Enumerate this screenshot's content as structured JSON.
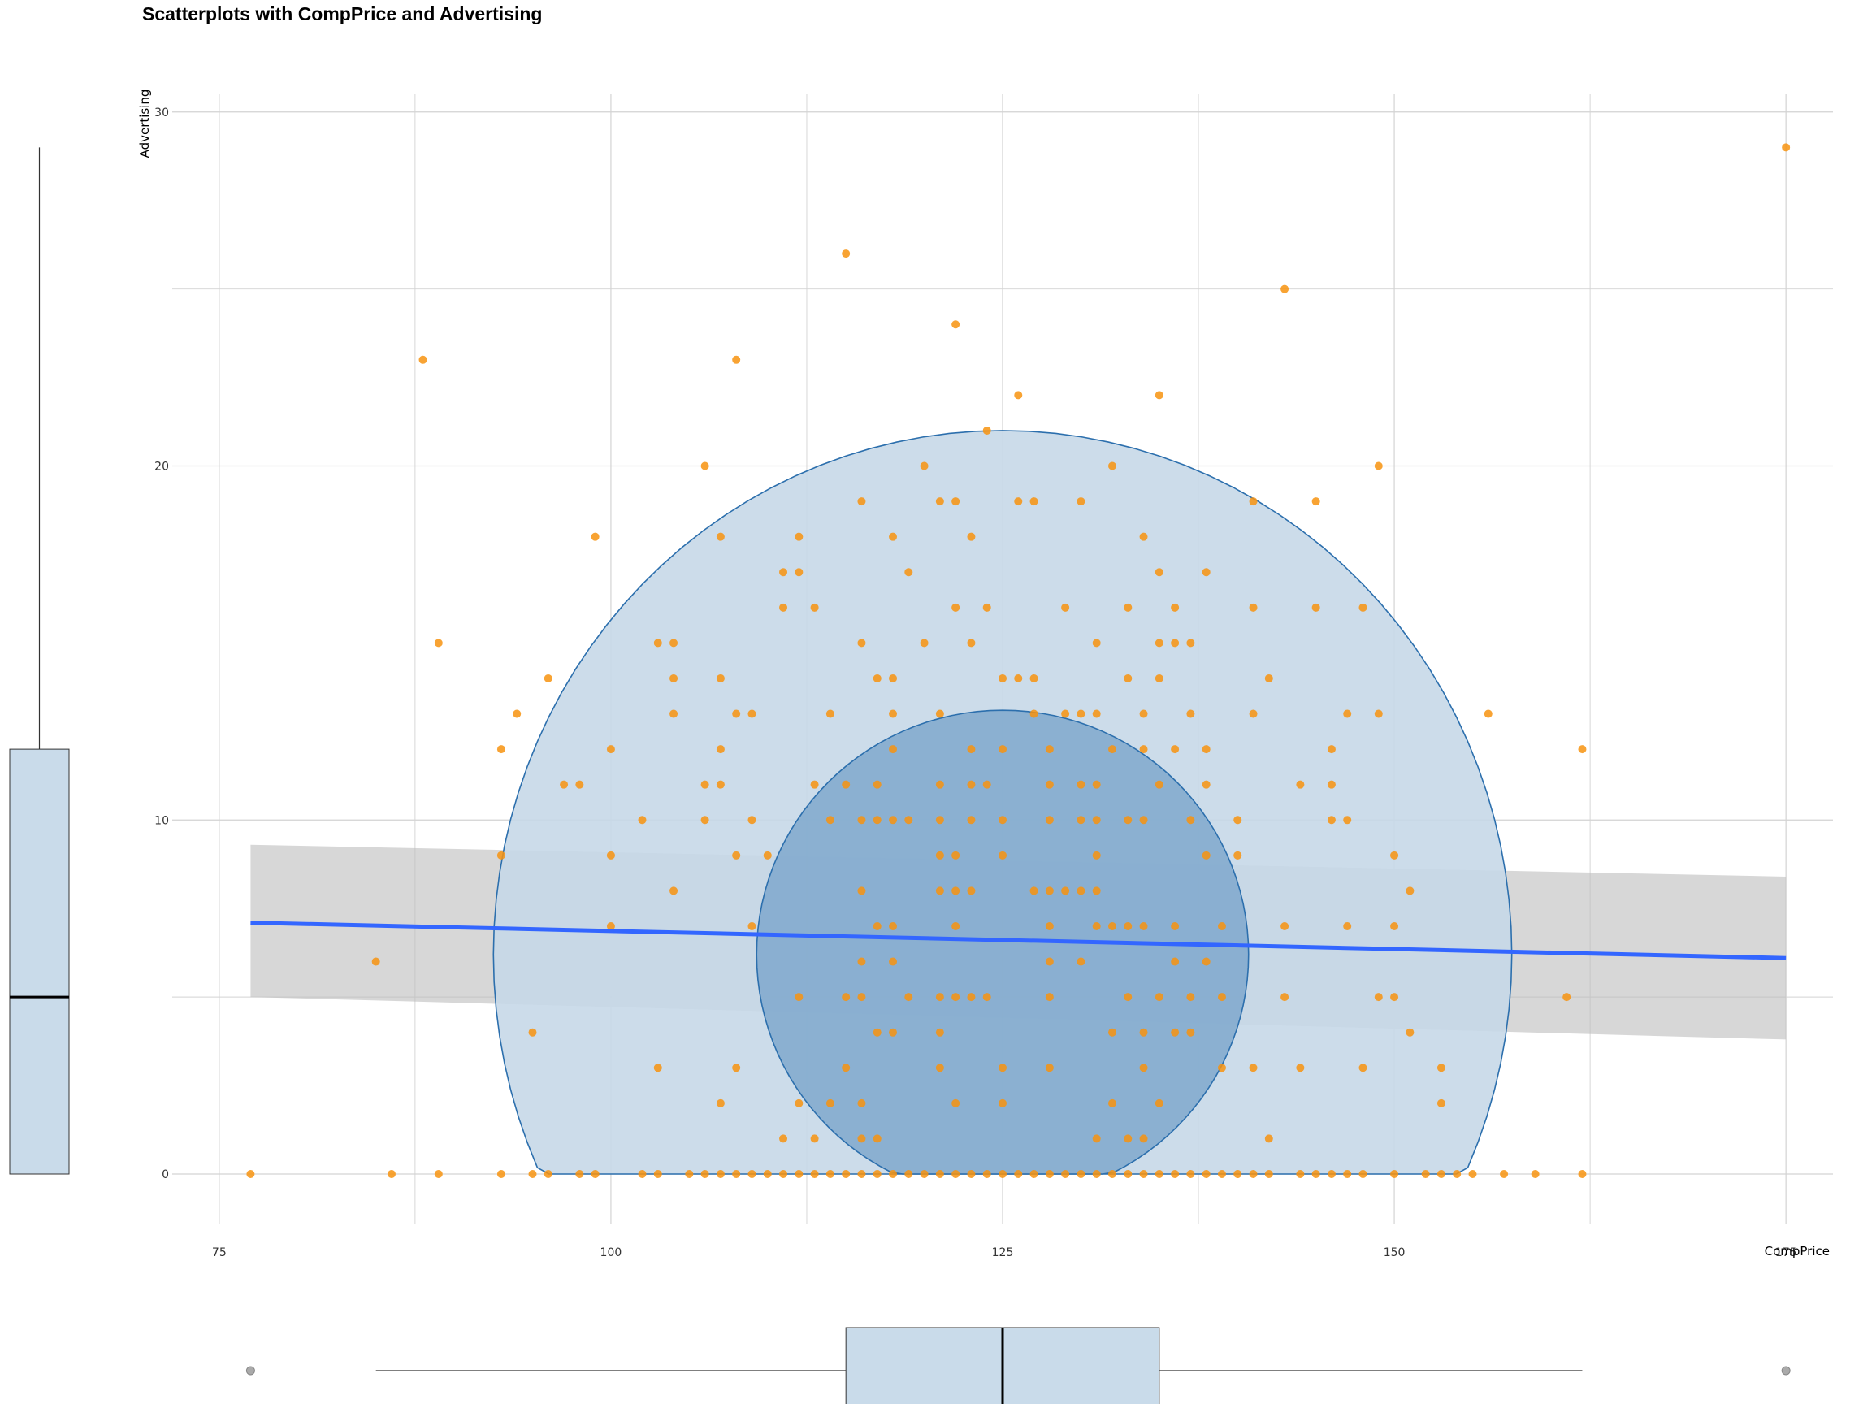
{
  "chart_data": {
    "type": "scatter",
    "title": "Scatterplots with CompPrice and Advertising",
    "xlabel": "CompPrice",
    "ylabel": "Advertising",
    "xlim": [
      72,
      178
    ],
    "ylim": [
      -1.4,
      30.5
    ],
    "x_ticks": [
      75,
      100,
      125,
      150,
      175
    ],
    "y_ticks": [
      0,
      10,
      20,
      30
    ],
    "grid": true,
    "legend": "none",
    "colors": {
      "points": "#f7930f",
      "trend_line": "#3366ff",
      "confidence_band": "#bdbdbd",
      "outer_ellipse": "#c6d8e8",
      "inner_ellipse": "#7fa8cd",
      "ellipse_stroke": "#2c6fad",
      "boxplot_fill": "#c9dbea",
      "grid": "#d3d3d3"
    },
    "trend": {
      "x": [
        77,
        175
      ],
      "y": [
        7.1,
        6.1
      ],
      "band_lower": [
        5.0,
        3.8
      ],
      "band_upper": [
        9.3,
        8.4
      ]
    },
    "ellipses": [
      {
        "name": "outer",
        "center": [
          125,
          6.2
        ],
        "semi_x": 32.5,
        "top": 21.0,
        "floor": 0
      },
      {
        "name": "inner",
        "center": [
          125,
          6.2
        ],
        "semi_x": 15.7,
        "top": 13.1,
        "floor": 0
      }
    ],
    "points": [
      [
        175,
        29
      ],
      [
        115,
        26
      ],
      [
        143,
        25
      ],
      [
        122,
        24
      ],
      [
        88,
        23
      ],
      [
        108,
        23
      ],
      [
        126,
        22
      ],
      [
        135,
        22
      ],
      [
        124,
        21
      ],
      [
        106,
        20
      ],
      [
        120,
        20
      ],
      [
        132,
        20
      ],
      [
        149,
        20
      ],
      [
        116,
        19
      ],
      [
        121,
        19
      ],
      [
        122,
        19
      ],
      [
        126,
        19
      ],
      [
        127,
        19
      ],
      [
        130,
        19
      ],
      [
        141,
        19
      ],
      [
        145,
        19
      ],
      [
        99,
        18
      ],
      [
        107,
        18
      ],
      [
        112,
        18
      ],
      [
        118,
        18
      ],
      [
        123,
        18
      ],
      [
        134,
        18
      ],
      [
        111,
        17
      ],
      [
        112,
        17
      ],
      [
        119,
        17
      ],
      [
        135,
        17
      ],
      [
        138,
        17
      ],
      [
        111,
        16
      ],
      [
        113,
        16
      ],
      [
        122,
        16
      ],
      [
        124,
        16
      ],
      [
        129,
        16
      ],
      [
        133,
        16
      ],
      [
        136,
        16
      ],
      [
        141,
        16
      ],
      [
        145,
        16
      ],
      [
        148,
        16
      ],
      [
        89,
        15
      ],
      [
        103,
        15
      ],
      [
        104,
        15
      ],
      [
        116,
        15
      ],
      [
        120,
        15
      ],
      [
        123,
        15
      ],
      [
        131,
        15
      ],
      [
        135,
        15
      ],
      [
        136,
        15
      ],
      [
        137,
        15
      ],
      [
        96,
        14
      ],
      [
        104,
        14
      ],
      [
        107,
        14
      ],
      [
        117,
        14
      ],
      [
        118,
        14
      ],
      [
        125,
        14
      ],
      [
        126,
        14
      ],
      [
        127,
        14
      ],
      [
        133,
        14
      ],
      [
        135,
        14
      ],
      [
        142,
        14
      ],
      [
        94,
        13
      ],
      [
        104,
        13
      ],
      [
        108,
        13
      ],
      [
        109,
        13
      ],
      [
        114,
        13
      ],
      [
        118,
        13
      ],
      [
        121,
        13
      ],
      [
        127,
        13
      ],
      [
        129,
        13
      ],
      [
        130,
        13
      ],
      [
        131,
        13
      ],
      [
        134,
        13
      ],
      [
        137,
        13
      ],
      [
        141,
        13
      ],
      [
        147,
        13
      ],
      [
        149,
        13
      ],
      [
        156,
        13
      ],
      [
        93,
        12
      ],
      [
        100,
        12
      ],
      [
        107,
        12
      ],
      [
        118,
        12
      ],
      [
        123,
        12
      ],
      [
        125,
        12
      ],
      [
        128,
        12
      ],
      [
        132,
        12
      ],
      [
        134,
        12
      ],
      [
        136,
        12
      ],
      [
        138,
        12
      ],
      [
        146,
        12
      ],
      [
        162,
        12
      ],
      [
        97,
        11
      ],
      [
        98,
        11
      ],
      [
        106,
        11
      ],
      [
        107,
        11
      ],
      [
        113,
        11
      ],
      [
        115,
        11
      ],
      [
        117,
        11
      ],
      [
        121,
        11
      ],
      [
        123,
        11
      ],
      [
        124,
        11
      ],
      [
        128,
        11
      ],
      [
        130,
        11
      ],
      [
        131,
        11
      ],
      [
        135,
        11
      ],
      [
        138,
        11
      ],
      [
        144,
        11
      ],
      [
        146,
        11
      ],
      [
        102,
        10
      ],
      [
        106,
        10
      ],
      [
        109,
        10
      ],
      [
        114,
        10
      ],
      [
        116,
        10
      ],
      [
        117,
        10
      ],
      [
        118,
        10
      ],
      [
        119,
        10
      ],
      [
        121,
        10
      ],
      [
        123,
        10
      ],
      [
        125,
        10
      ],
      [
        128,
        10
      ],
      [
        130,
        10
      ],
      [
        131,
        10
      ],
      [
        133,
        10
      ],
      [
        134,
        10
      ],
      [
        137,
        10
      ],
      [
        140,
        10
      ],
      [
        146,
        10
      ],
      [
        147,
        10
      ],
      [
        93,
        9
      ],
      [
        100,
        9
      ],
      [
        108,
        9
      ],
      [
        110,
        9
      ],
      [
        121,
        9
      ],
      [
        122,
        9
      ],
      [
        125,
        9
      ],
      [
        131,
        9
      ],
      [
        138,
        9
      ],
      [
        140,
        9
      ],
      [
        150,
        9
      ],
      [
        104,
        8
      ],
      [
        116,
        8
      ],
      [
        121,
        8
      ],
      [
        122,
        8
      ],
      [
        123,
        8
      ],
      [
        127,
        8
      ],
      [
        128,
        8
      ],
      [
        129,
        8
      ],
      [
        130,
        8
      ],
      [
        131,
        8
      ],
      [
        151,
        8
      ],
      [
        100,
        7
      ],
      [
        109,
        7
      ],
      [
        117,
        7
      ],
      [
        118,
        7
      ],
      [
        122,
        7
      ],
      [
        128,
        7
      ],
      [
        131,
        7
      ],
      [
        132,
        7
      ],
      [
        133,
        7
      ],
      [
        134,
        7
      ],
      [
        136,
        7
      ],
      [
        139,
        7
      ],
      [
        143,
        7
      ],
      [
        147,
        7
      ],
      [
        150,
        7
      ],
      [
        85,
        6
      ],
      [
        116,
        6
      ],
      [
        118,
        6
      ],
      [
        128,
        6
      ],
      [
        130,
        6
      ],
      [
        136,
        6
      ],
      [
        138,
        6
      ],
      [
        112,
        5
      ],
      [
        115,
        5
      ],
      [
        116,
        5
      ],
      [
        119,
        5
      ],
      [
        121,
        5
      ],
      [
        122,
        5
      ],
      [
        123,
        5
      ],
      [
        124,
        5
      ],
      [
        128,
        5
      ],
      [
        133,
        5
      ],
      [
        135,
        5
      ],
      [
        137,
        5
      ],
      [
        139,
        5
      ],
      [
        143,
        5
      ],
      [
        149,
        5
      ],
      [
        150,
        5
      ],
      [
        161,
        5
      ],
      [
        95,
        4
      ],
      [
        117,
        4
      ],
      [
        118,
        4
      ],
      [
        121,
        4
      ],
      [
        132,
        4
      ],
      [
        134,
        4
      ],
      [
        136,
        4
      ],
      [
        137,
        4
      ],
      [
        151,
        4
      ],
      [
        103,
        3
      ],
      [
        108,
        3
      ],
      [
        115,
        3
      ],
      [
        121,
        3
      ],
      [
        125,
        3
      ],
      [
        128,
        3
      ],
      [
        134,
        3
      ],
      [
        139,
        3
      ],
      [
        141,
        3
      ],
      [
        144,
        3
      ],
      [
        148,
        3
      ],
      [
        153,
        3
      ],
      [
        107,
        2
      ],
      [
        112,
        2
      ],
      [
        114,
        2
      ],
      [
        116,
        2
      ],
      [
        122,
        2
      ],
      [
        125,
        2
      ],
      [
        132,
        2
      ],
      [
        135,
        2
      ],
      [
        153,
        2
      ],
      [
        111,
        1
      ],
      [
        113,
        1
      ],
      [
        116,
        1
      ],
      [
        117,
        1
      ],
      [
        131,
        1
      ],
      [
        133,
        1
      ],
      [
        134,
        1
      ],
      [
        142,
        1
      ],
      [
        77,
        0
      ],
      [
        86,
        0
      ],
      [
        89,
        0
      ],
      [
        93,
        0
      ],
      [
        95,
        0
      ],
      [
        96,
        0
      ],
      [
        98,
        0
      ],
      [
        99,
        0
      ],
      [
        102,
        0
      ],
      [
        103,
        0
      ],
      [
        105,
        0
      ],
      [
        106,
        0
      ],
      [
        107,
        0
      ],
      [
        108,
        0
      ],
      [
        109,
        0
      ],
      [
        110,
        0
      ],
      [
        111,
        0
      ],
      [
        112,
        0
      ],
      [
        113,
        0
      ],
      [
        114,
        0
      ],
      [
        115,
        0
      ],
      [
        116,
        0
      ],
      [
        117,
        0
      ],
      [
        118,
        0
      ],
      [
        119,
        0
      ],
      [
        120,
        0
      ],
      [
        121,
        0
      ],
      [
        122,
        0
      ],
      [
        123,
        0
      ],
      [
        124,
        0
      ],
      [
        125,
        0
      ],
      [
        126,
        0
      ],
      [
        127,
        0
      ],
      [
        128,
        0
      ],
      [
        129,
        0
      ],
      [
        130,
        0
      ],
      [
        131,
        0
      ],
      [
        132,
        0
      ],
      [
        133,
        0
      ],
      [
        134,
        0
      ],
      [
        135,
        0
      ],
      [
        136,
        0
      ],
      [
        137,
        0
      ],
      [
        138,
        0
      ],
      [
        139,
        0
      ],
      [
        140,
        0
      ],
      [
        141,
        0
      ],
      [
        142,
        0
      ],
      [
        144,
        0
      ],
      [
        145,
        0
      ],
      [
        146,
        0
      ],
      [
        147,
        0
      ],
      [
        148,
        0
      ],
      [
        150,
        0
      ],
      [
        152,
        0
      ],
      [
        153,
        0
      ],
      [
        154,
        0
      ],
      [
        155,
        0
      ],
      [
        157,
        0
      ],
      [
        159,
        0
      ],
      [
        162,
        0
      ]
    ],
    "marginal_x_boxplot": {
      "q1": 115,
      "median": 125,
      "q3": 135,
      "whisker_low": 85,
      "whisker_high": 162,
      "outliers": [
        77,
        175
      ]
    },
    "marginal_y_boxplot": {
      "q1": 0,
      "median": 5,
      "q3": 12,
      "whisker_low": 0,
      "whisker_high": 29,
      "outliers": []
    }
  }
}
